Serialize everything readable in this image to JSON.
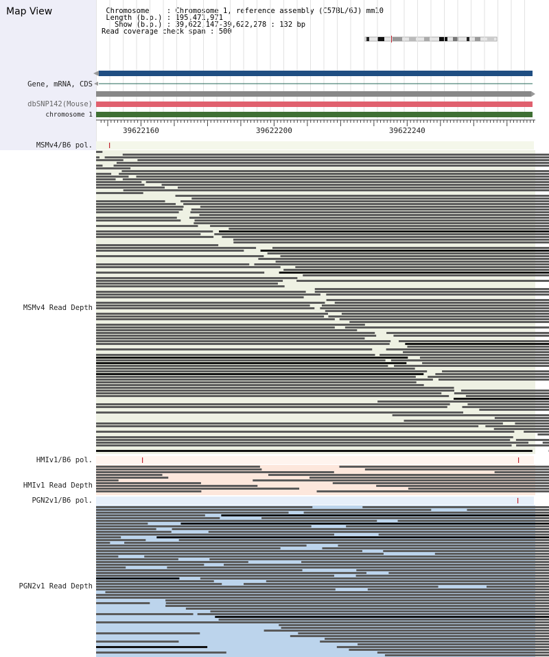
{
  "window": {
    "title": "Map View"
  },
  "info": {
    "chromosome": {
      "key": "Chromosome",
      "value": "Chromosome 1, reference assembly (C57BL/6J) mm10"
    },
    "length": {
      "key": "Length (b.p.)",
      "value": "195,471,971"
    },
    "show": {
      "key": "Show (b.p.)",
      "value": "39,622,147-39,622,278 : 132 bp"
    },
    "coverage": {
      "key": "Read coverage check span",
      "value": "500"
    }
  },
  "tracks": {
    "gene": "Gene, mRNA, CDS",
    "dbsnp": "dbSNP142(Mouse)",
    "chromosome": "chromosome 1",
    "msm_pol": "MSMv4/B6 pol.",
    "msm_depth": "MSMv4 Read Depth",
    "hmi_pol": "HMIv1/B6 pol.",
    "hmi_depth": "HMIv1 Read Depth",
    "pgn_pol": "PGN2v1/B6 pol.",
    "pgn_depth": "PGN2v1 Read Depth"
  },
  "ruler": {
    "start": 39622147,
    "end": 39622278,
    "labels": [
      "39622160",
      "39622200",
      "39622240"
    ]
  },
  "colors": {
    "gene_bar": "#1f4e82",
    "dbsnp_bar": "#e0606e",
    "chromosome_bar": "#3f6f33",
    "msm_bg": "#eef1e3",
    "hmi_bg": "#fde7dc",
    "pgn_bg": "#bcd4ec",
    "sidebar_bg": "#eeeef8",
    "read": "#5a5a5a",
    "polymorphism": "#c0202c"
  },
  "icons": [
    "chromosome-ideogram-icon",
    "left-arrow-icon",
    "right-arrow-icon"
  ]
}
